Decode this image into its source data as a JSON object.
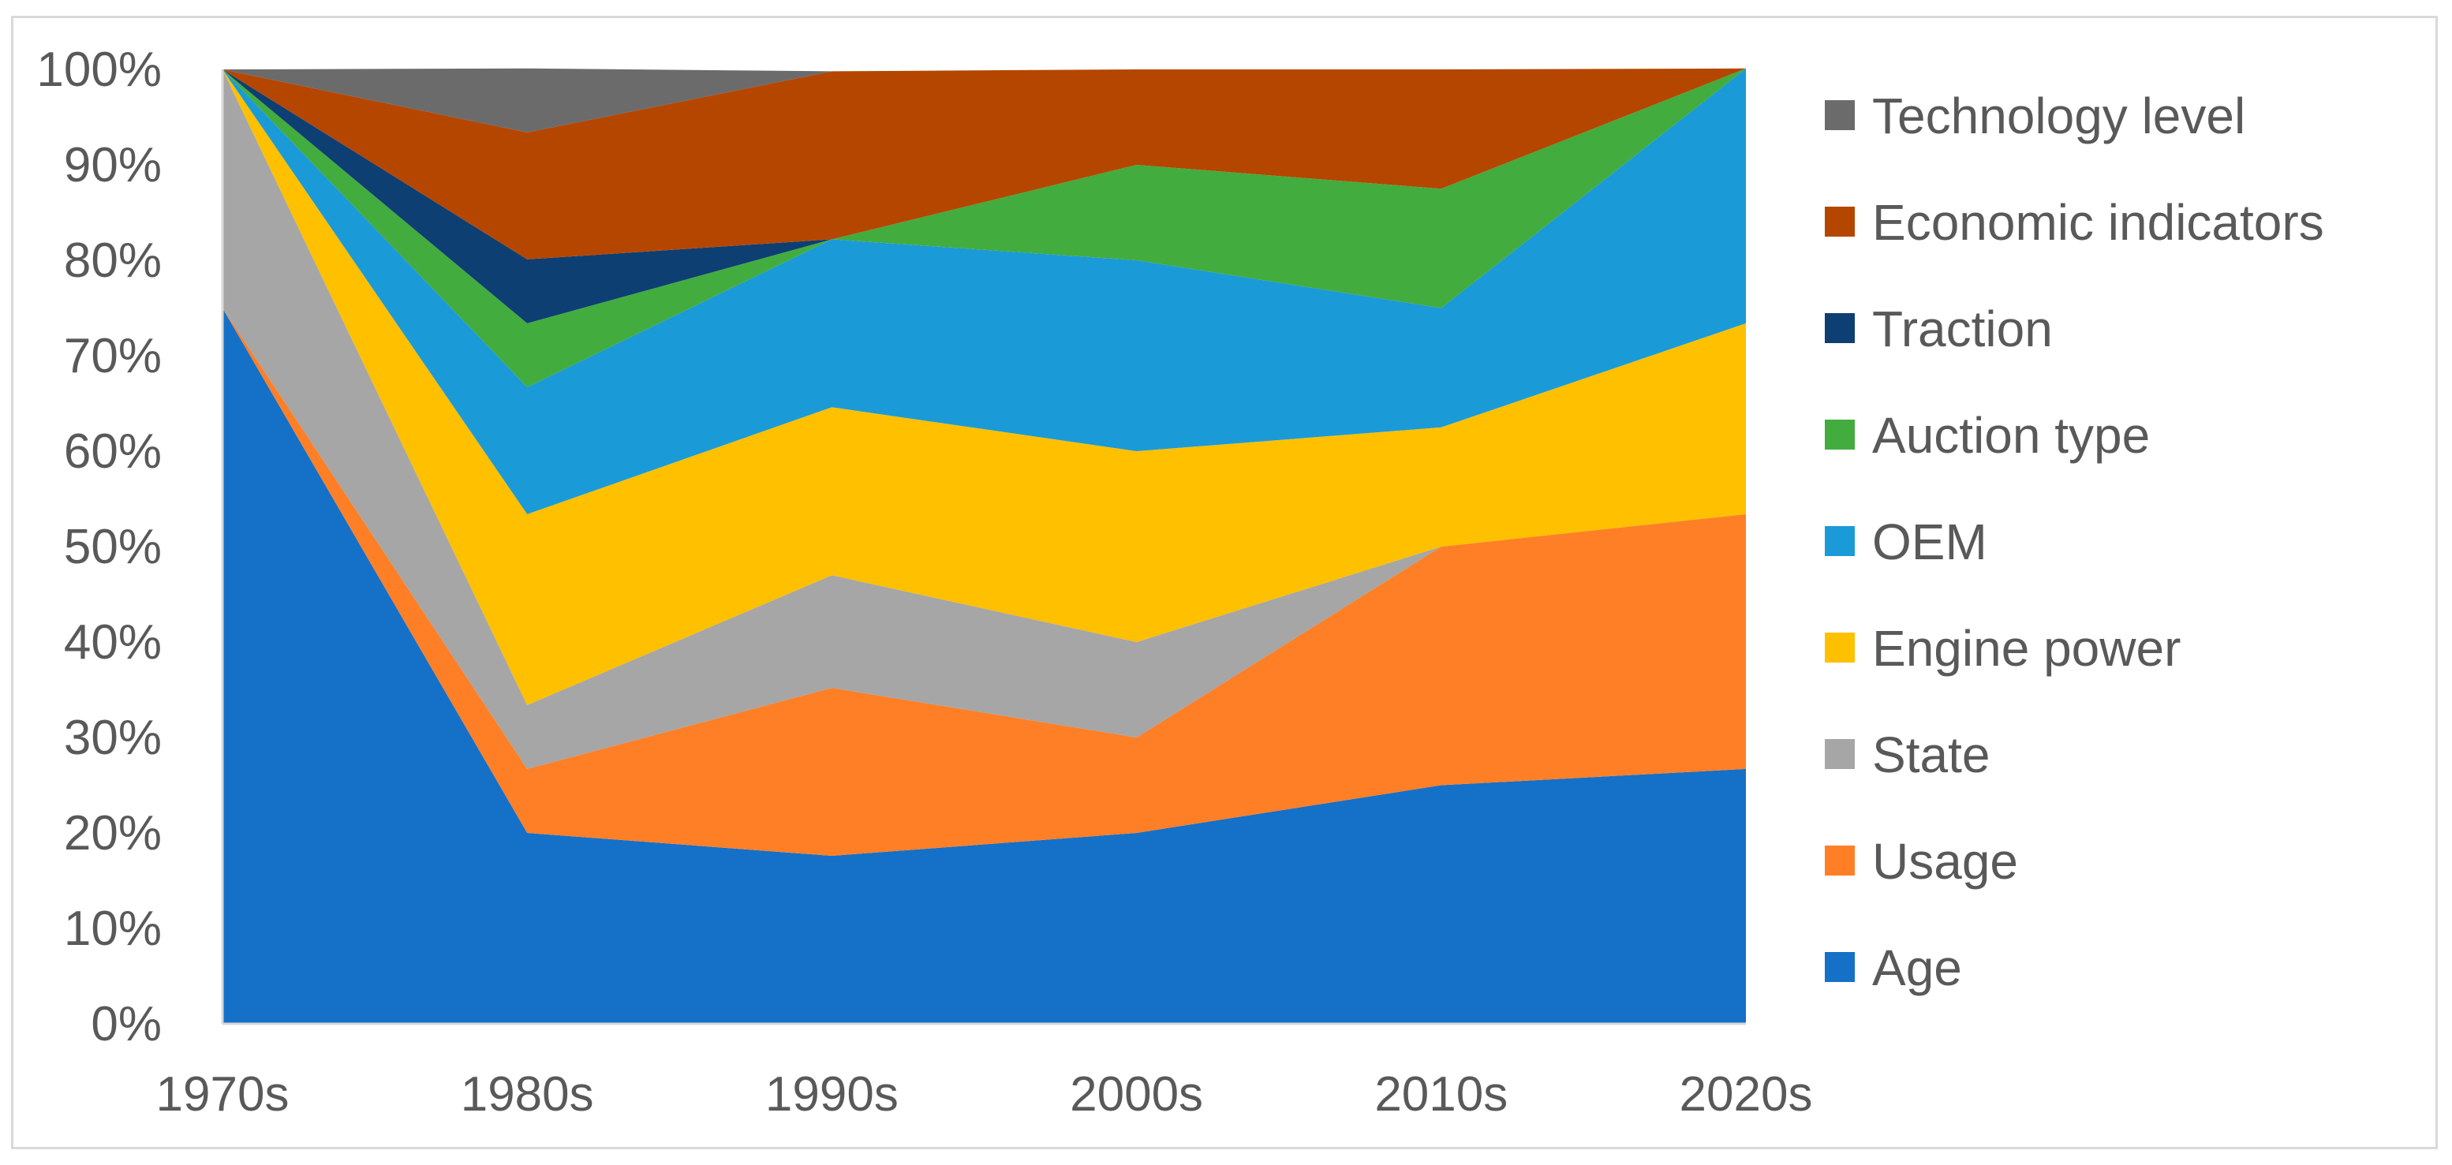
{
  "chart_data": {
    "type": "area",
    "stacked": true,
    "normalized": true,
    "title": "",
    "xlabel": "",
    "ylabel": "",
    "categories": [
      "1970s",
      "1980s",
      "1990s",
      "2000s",
      "2010s",
      "2020s"
    ],
    "ylim": [
      0,
      100
    ],
    "yticks": [
      0,
      10,
      20,
      30,
      40,
      50,
      60,
      70,
      80,
      90,
      100
    ],
    "ytick_labels": [
      "0%",
      "10%",
      "20%",
      "30%",
      "40%",
      "50%",
      "60%",
      "70%",
      "80%",
      "90%",
      "100%"
    ],
    "grid": false,
    "legend_position": "right",
    "legend_order": [
      "Technology level",
      "Economic indicators",
      "Traction",
      "Auction type",
      "OEM",
      "Engine power",
      "State",
      "Usage",
      "Age"
    ],
    "series": [
      {
        "name": "Age",
        "color": "#1570C8",
        "values": [
          75,
          20,
          17.6,
          20,
          25,
          26.7
        ]
      },
      {
        "name": "Usage",
        "color": "#FF7F27",
        "values": [
          0,
          6.7,
          17.6,
          10,
          25,
          26.7
        ]
      },
      {
        "name": "State",
        "color": "#A6A6A6",
        "values": [
          25,
          6.7,
          11.8,
          10,
          0,
          0
        ]
      },
      {
        "name": "Engine power",
        "color": "#FFC000",
        "values": [
          0,
          20,
          17.6,
          20,
          12.5,
          20
        ]
      },
      {
        "name": "OEM",
        "color": "#1A9BD7",
        "values": [
          0,
          13.3,
          17.6,
          20,
          12.5,
          26.7
        ]
      },
      {
        "name": "Auction type",
        "color": "#43AC3E",
        "values": [
          0,
          6.7,
          0,
          10,
          12.5,
          0
        ]
      },
      {
        "name": "Traction",
        "color": "#0D3F73",
        "values": [
          0,
          6.7,
          0,
          0,
          0,
          0
        ]
      },
      {
        "name": "Economic indicators",
        "color": "#B54600",
        "values": [
          0,
          13.3,
          17.6,
          10,
          12.5,
          0
        ]
      },
      {
        "name": "Technology level",
        "color": "#6B6B6B",
        "values": [
          0,
          6.7,
          0,
          0,
          0,
          0
        ]
      }
    ]
  }
}
